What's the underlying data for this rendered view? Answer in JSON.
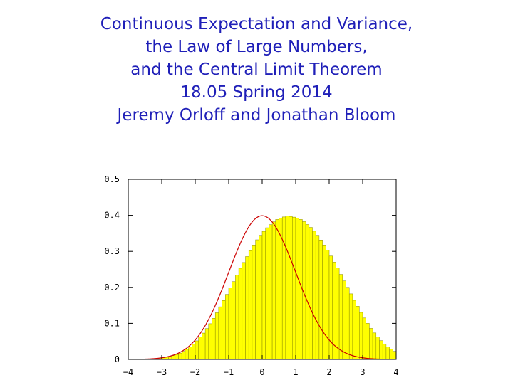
{
  "title_lines": [
    "Continuous Expectation and Variance,",
    "the Law of Large Numbers,",
    "and the Central Limit Theorem",
    "18.05 Spring 2014",
    "Jeremy Orloff and Jonathan Bloom"
  ],
  "colors": {
    "title": "#1f1fb8",
    "bar_fill": "#ffff00",
    "bar_stroke": "#8a8a00",
    "curve": "#cc0000",
    "axis": "#000000"
  },
  "chart_data": {
    "type": "bar",
    "title": "",
    "xlabel": "",
    "ylabel": "",
    "xlim": [
      -4,
      4
    ],
    "ylim": [
      0,
      0.5
    ],
    "xticks": [
      -4,
      -3,
      -2,
      -1,
      0,
      1,
      2,
      3,
      4
    ],
    "xtick_labels": [
      "−4",
      "−3",
      "−2",
      "−1",
      "0",
      "1",
      "2",
      "3",
      "4"
    ],
    "yticks": [
      0,
      0.1,
      0.2,
      0.3,
      0.4,
      0.5
    ],
    "ytick_labels": [
      "0",
      "0.1",
      "0.2",
      "0.3",
      "0.4",
      "0.5"
    ],
    "grid": false,
    "legend": "none",
    "histogram": {
      "bin_width": 0.1,
      "bin_left_edges": [
        -4.0,
        -3.9,
        -3.8,
        -3.7,
        -3.6,
        -3.5,
        -3.4,
        -3.3,
        -3.2,
        -3.1,
        -3.0,
        -2.9,
        -2.8,
        -2.7,
        -2.6,
        -2.5,
        -2.4,
        -2.3,
        -2.2,
        -2.1,
        -2.0,
        -1.9,
        -1.8,
        -1.7,
        -1.6,
        -1.5,
        -1.4,
        -1.3,
        -1.2,
        -1.1,
        -1.0,
        -0.9,
        -0.8,
        -0.7,
        -0.6,
        -0.5,
        -0.4,
        -0.3,
        -0.2,
        -0.1,
        0.0,
        0.1,
        0.2,
        0.3,
        0.4,
        0.5,
        0.6,
        0.7,
        0.8,
        0.9,
        1.0,
        1.1,
        1.2,
        1.3,
        1.4,
        1.5,
        1.6,
        1.7,
        1.8,
        1.9,
        2.0,
        2.1,
        2.2,
        2.3,
        2.4,
        2.5,
        2.6,
        2.7,
        2.8,
        2.9,
        3.0,
        3.1,
        3.2,
        3.3,
        3.4,
        3.5,
        3.6,
        3.7,
        3.8,
        3.9
      ],
      "densities": [
        0.0002,
        0.0003,
        0.0004,
        0.0005,
        0.0007,
        0.001,
        0.0014,
        0.0019,
        0.0025,
        0.0033,
        0.0043,
        0.006,
        0.008,
        0.0105,
        0.0135,
        0.0175,
        0.0225,
        0.028,
        0.035,
        0.0425,
        0.0515,
        0.062,
        0.073,
        0.0855,
        0.099,
        0.114,
        0.1295,
        0.146,
        0.1635,
        0.1805,
        0.1985,
        0.216,
        0.2345,
        0.253,
        0.269,
        0.2856,
        0.302,
        0.3175,
        0.332,
        0.3445,
        0.3555,
        0.3655,
        0.374,
        0.382,
        0.3885,
        0.3925,
        0.3955,
        0.398,
        0.397,
        0.395,
        0.392,
        0.3885,
        0.3825,
        0.3745,
        0.3665,
        0.356,
        0.3445,
        0.3315,
        0.3175,
        0.3035,
        0.287,
        0.27,
        0.2535,
        0.236,
        0.218,
        0.2,
        0.182,
        0.164,
        0.1475,
        0.1305,
        0.115,
        0.1,
        0.086,
        0.0735,
        0.062,
        0.052,
        0.043,
        0.035,
        0.0285,
        0.0225
      ]
    },
    "overlay_curve": {
      "type": "line",
      "function": "standard normal pdf",
      "x_range": [
        -4,
        4
      ],
      "peak": [
        0,
        0.3989
      ]
    }
  }
}
